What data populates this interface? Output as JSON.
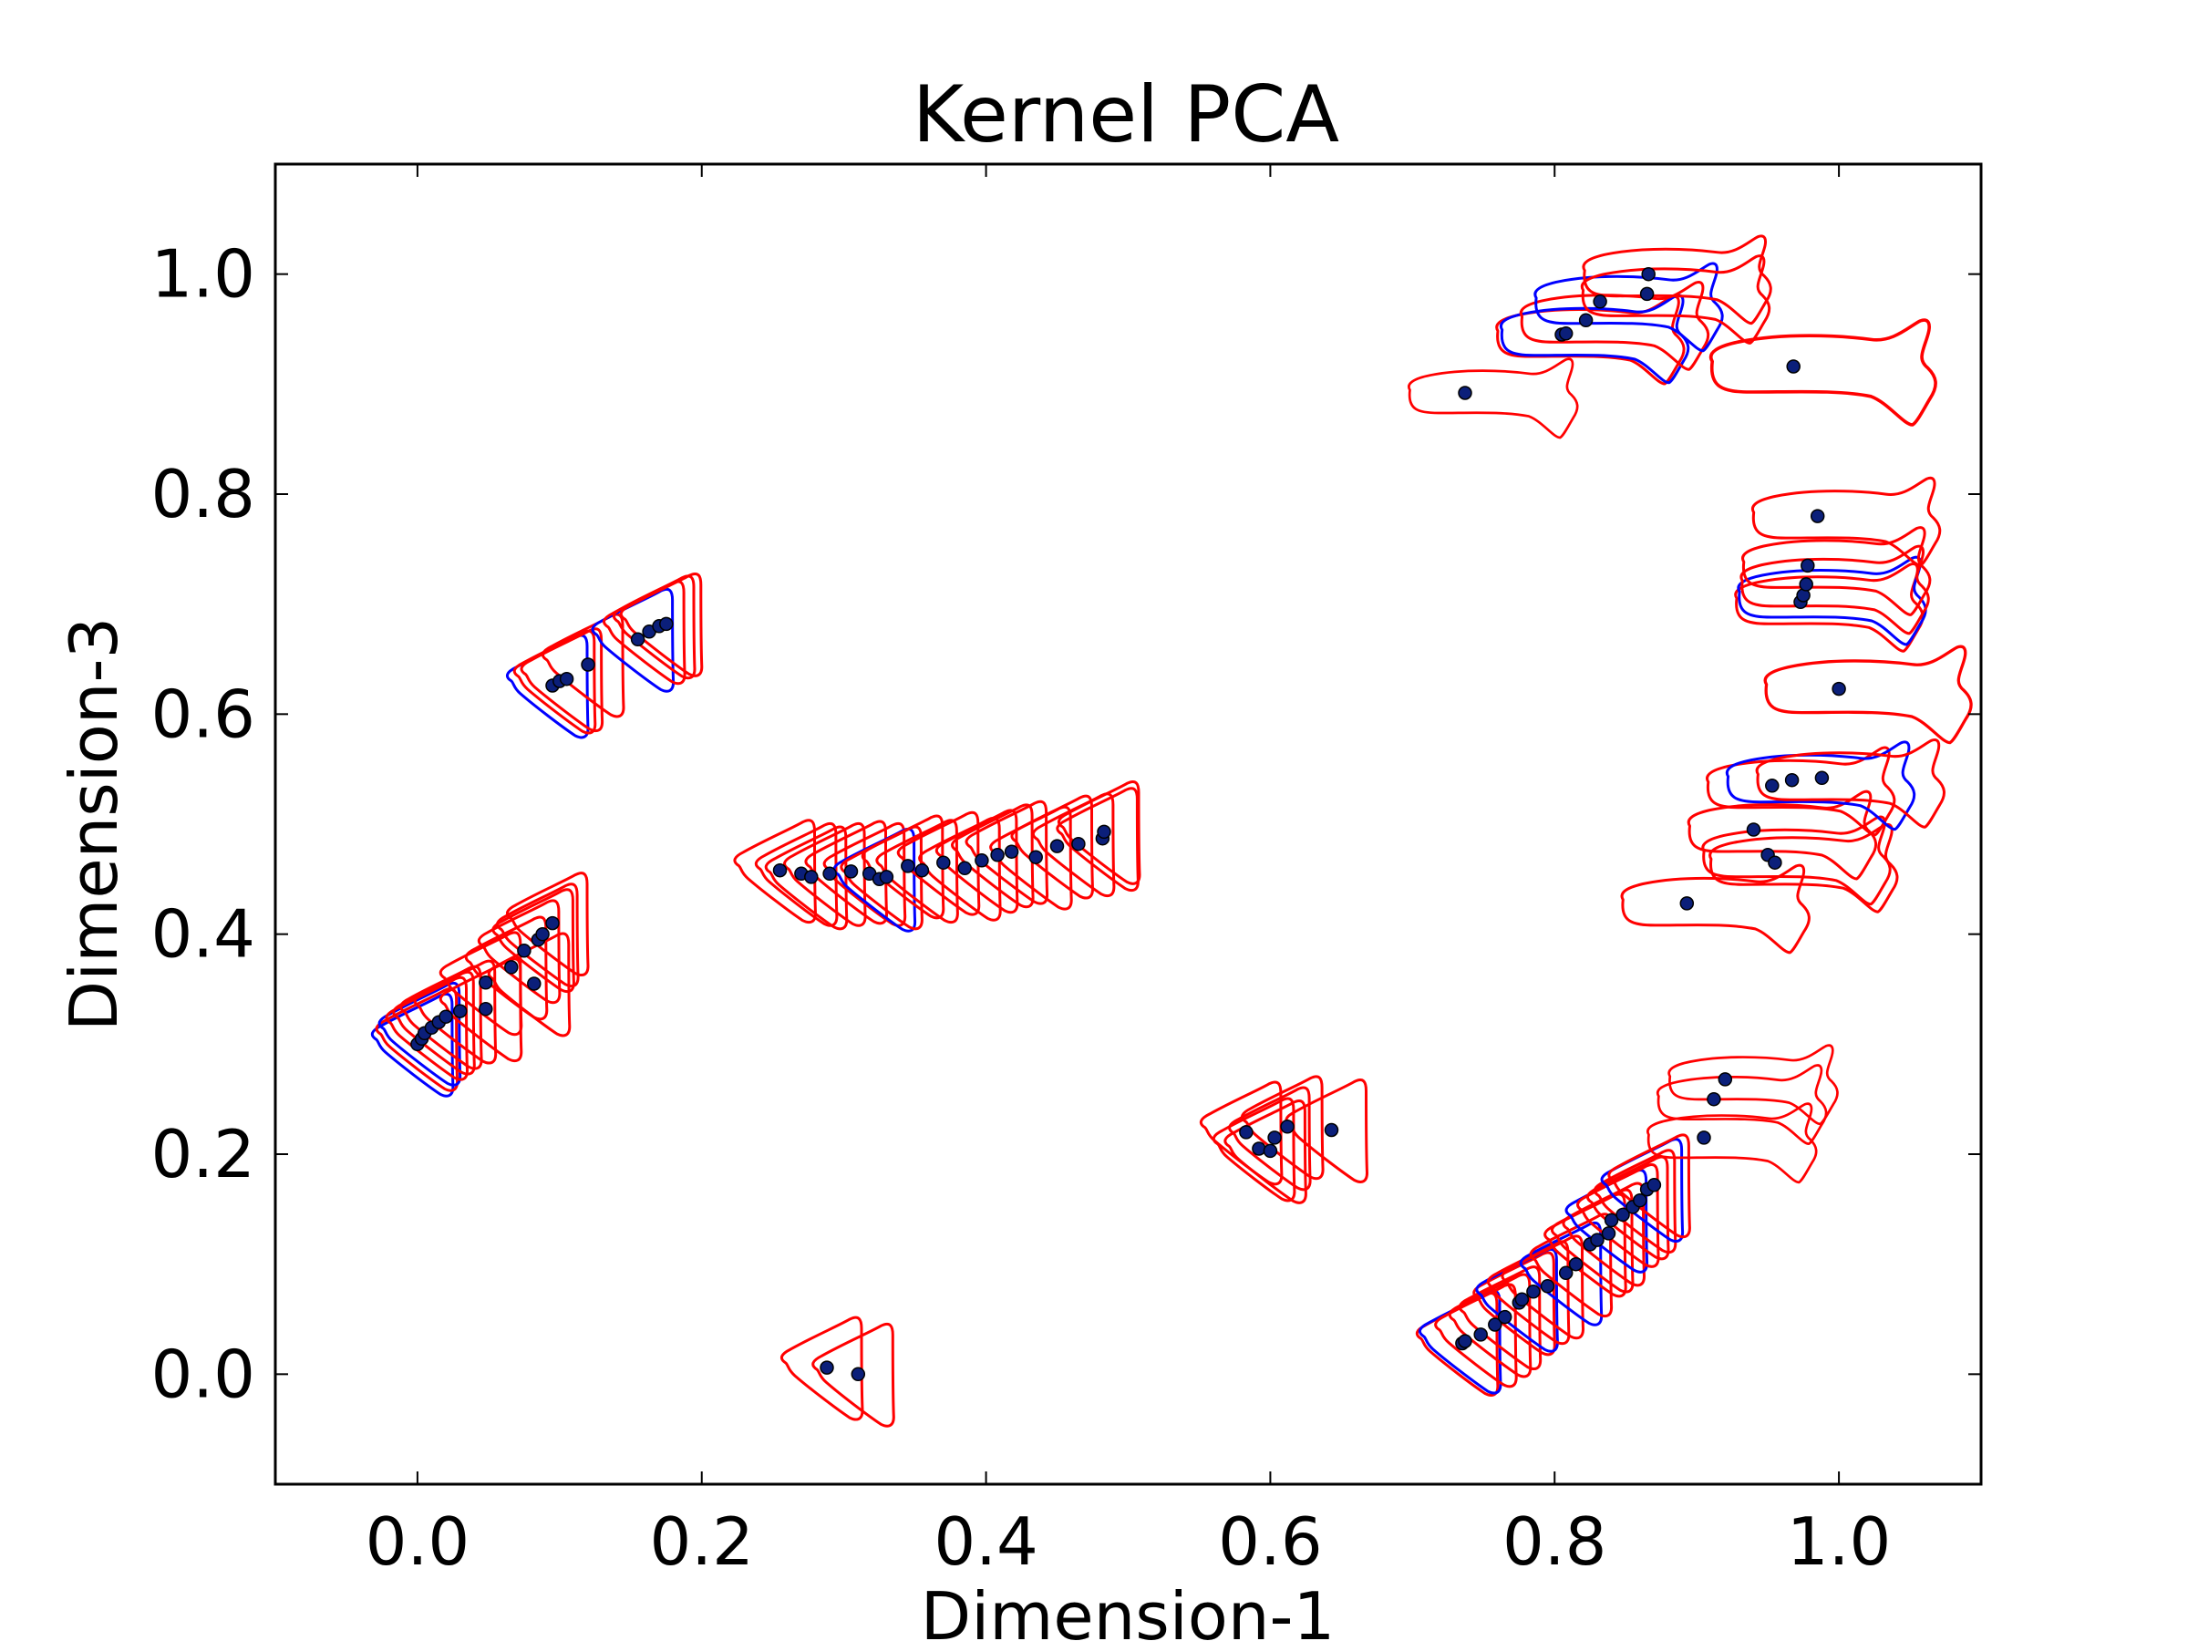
{
  "chart_data": {
    "type": "scatter",
    "title": "Kernel PCA",
    "xlabel": "Dimension-1",
    "ylabel": "Dimension-3",
    "xlim": [
      -0.1,
      1.1
    ],
    "ylim": [
      -0.1,
      1.1
    ],
    "xticks": [
      "0.0",
      "0.2",
      "0.4",
      "0.6",
      "0.8",
      "1.0"
    ],
    "yticks": [
      "0.0",
      "0.2",
      "0.4",
      "0.6",
      "0.8",
      "1.0"
    ],
    "grid": false,
    "colors": {
      "point": "#0b1f7a",
      "glyph_red": "#ff0000",
      "glyph_blue": "#0000ff"
    },
    "points": [
      {
        "x": 0.288,
        "y": 0.006,
        "shape": "tri",
        "color": "red",
        "scale": 1.0
      },
      {
        "x": 0.31,
        "y": 0.0,
        "shape": "tri",
        "color": "red",
        "scale": 1.0
      },
      {
        "x": 0.0,
        "y": 0.3,
        "shape": "tri",
        "color": "blue",
        "scale": 1.0
      },
      {
        "x": 0.003,
        "y": 0.305,
        "shape": "tri",
        "color": "red",
        "scale": 1.0
      },
      {
        "x": 0.005,
        "y": 0.31,
        "shape": "tri",
        "color": "blue",
        "scale": 1.0
      },
      {
        "x": 0.01,
        "y": 0.315,
        "shape": "tri",
        "color": "red",
        "scale": 1.0
      },
      {
        "x": 0.015,
        "y": 0.32,
        "shape": "tri",
        "color": "red",
        "scale": 1.0
      },
      {
        "x": 0.02,
        "y": 0.325,
        "shape": "tri",
        "color": "red",
        "scale": 1.0
      },
      {
        "x": 0.03,
        "y": 0.33,
        "shape": "tri",
        "color": "red",
        "scale": 1.0
      },
      {
        "x": 0.048,
        "y": 0.332,
        "shape": "tri",
        "color": "red",
        "scale": 1.0
      },
      {
        "x": 0.048,
        "y": 0.356,
        "shape": "tri",
        "color": "red",
        "scale": 1.0
      },
      {
        "x": 0.066,
        "y": 0.37,
        "shape": "tri",
        "color": "red",
        "scale": 1.0
      },
      {
        "x": 0.075,
        "y": 0.385,
        "shape": "tri",
        "color": "red",
        "scale": 1.0
      },
      {
        "x": 0.082,
        "y": 0.355,
        "shape": "tri",
        "color": "red",
        "scale": 1.0
      },
      {
        "x": 0.085,
        "y": 0.395,
        "shape": "tri",
        "color": "red",
        "scale": 1.0
      },
      {
        "x": 0.088,
        "y": 0.4,
        "shape": "tri",
        "color": "red",
        "scale": 1.0
      },
      {
        "x": 0.095,
        "y": 0.41,
        "shape": "tri",
        "color": "red",
        "scale": 1.0
      },
      {
        "x": 0.095,
        "y": 0.626,
        "shape": "tri",
        "color": "blue",
        "scale": 1.0
      },
      {
        "x": 0.1,
        "y": 0.63,
        "shape": "tri",
        "color": "red",
        "scale": 1.0
      },
      {
        "x": 0.105,
        "y": 0.632,
        "shape": "tri",
        "color": "red",
        "scale": 1.0
      },
      {
        "x": 0.12,
        "y": 0.645,
        "shape": "tri",
        "color": "red",
        "scale": 1.0
      },
      {
        "x": 0.155,
        "y": 0.668,
        "shape": "tri",
        "color": "blue",
        "scale": 1.0
      },
      {
        "x": 0.163,
        "y": 0.675,
        "shape": "tri",
        "color": "red",
        "scale": 1.0
      },
      {
        "x": 0.17,
        "y": 0.68,
        "shape": "tri",
        "color": "red",
        "scale": 1.0
      },
      {
        "x": 0.175,
        "y": 0.682,
        "shape": "tri",
        "color": "red",
        "scale": 1.0
      },
      {
        "x": 0.255,
        "y": 0.458,
        "shape": "tri",
        "color": "red",
        "scale": 1.0
      },
      {
        "x": 0.27,
        "y": 0.455,
        "shape": "tri",
        "color": "red",
        "scale": 1.0
      },
      {
        "x": 0.277,
        "y": 0.452,
        "shape": "tri",
        "color": "red",
        "scale": 1.0
      },
      {
        "x": 0.29,
        "y": 0.455,
        "shape": "tri",
        "color": "red",
        "scale": 1.0
      },
      {
        "x": 0.305,
        "y": 0.457,
        "shape": "tri",
        "color": "red",
        "scale": 1.0
      },
      {
        "x": 0.318,
        "y": 0.455,
        "shape": "tri",
        "color": "red",
        "scale": 1.0
      },
      {
        "x": 0.325,
        "y": 0.45,
        "shape": "tri",
        "color": "blue",
        "scale": 1.0
      },
      {
        "x": 0.33,
        "y": 0.452,
        "shape": "tri",
        "color": "red",
        "scale": 1.0
      },
      {
        "x": 0.345,
        "y": 0.462,
        "shape": "tri",
        "color": "red",
        "scale": 1.0
      },
      {
        "x": 0.355,
        "y": 0.458,
        "shape": "tri",
        "color": "red",
        "scale": 1.0
      },
      {
        "x": 0.37,
        "y": 0.465,
        "shape": "tri",
        "color": "red",
        "scale": 1.0
      },
      {
        "x": 0.385,
        "y": 0.46,
        "shape": "tri",
        "color": "red",
        "scale": 1.0
      },
      {
        "x": 0.397,
        "y": 0.467,
        "shape": "tri",
        "color": "red",
        "scale": 1.0
      },
      {
        "x": 0.408,
        "y": 0.472,
        "shape": "tri",
        "color": "red",
        "scale": 1.0
      },
      {
        "x": 0.418,
        "y": 0.475,
        "shape": "tri",
        "color": "red",
        "scale": 1.0
      },
      {
        "x": 0.435,
        "y": 0.47,
        "shape": "tri",
        "color": "red",
        "scale": 1.0
      },
      {
        "x": 0.45,
        "y": 0.48,
        "shape": "tri",
        "color": "red",
        "scale": 1.0
      },
      {
        "x": 0.465,
        "y": 0.482,
        "shape": "tri",
        "color": "red",
        "scale": 1.0
      },
      {
        "x": 0.482,
        "y": 0.487,
        "shape": "tri",
        "color": "red",
        "scale": 1.0
      },
      {
        "x": 0.483,
        "y": 0.493,
        "shape": "tri",
        "color": "red",
        "scale": 1.0
      },
      {
        "x": 0.583,
        "y": 0.22,
        "shape": "tri",
        "color": "red",
        "scale": 1.0
      },
      {
        "x": 0.592,
        "y": 0.205,
        "shape": "tri",
        "color": "red",
        "scale": 1.0
      },
      {
        "x": 0.6,
        "y": 0.203,
        "shape": "tri",
        "color": "red",
        "scale": 1.0
      },
      {
        "x": 0.603,
        "y": 0.215,
        "shape": "tri",
        "color": "red",
        "scale": 1.0
      },
      {
        "x": 0.612,
        "y": 0.225,
        "shape": "tri",
        "color": "red",
        "scale": 1.0
      },
      {
        "x": 0.643,
        "y": 0.222,
        "shape": "tri",
        "color": "red",
        "scale": 1.0
      },
      {
        "x": 0.735,
        "y": 0.028,
        "shape": "tri",
        "color": "red",
        "scale": 1.0
      },
      {
        "x": 0.737,
        "y": 0.03,
        "shape": "tri",
        "color": "blue",
        "scale": 1.0
      },
      {
        "x": 0.748,
        "y": 0.036,
        "shape": "tri",
        "color": "red",
        "scale": 1.0
      },
      {
        "x": 0.758,
        "y": 0.045,
        "shape": "tri",
        "color": "red",
        "scale": 1.0
      },
      {
        "x": 0.765,
        "y": 0.052,
        "shape": "tri",
        "color": "red",
        "scale": 1.0
      },
      {
        "x": 0.775,
        "y": 0.065,
        "shape": "tri",
        "color": "red",
        "scale": 1.0
      },
      {
        "x": 0.777,
        "y": 0.068,
        "shape": "tri",
        "color": "blue",
        "scale": 1.0
      },
      {
        "x": 0.785,
        "y": 0.075,
        "shape": "tri",
        "color": "red",
        "scale": 1.0
      },
      {
        "x": 0.795,
        "y": 0.08,
        "shape": "tri",
        "color": "red",
        "scale": 1.0
      },
      {
        "x": 0.808,
        "y": 0.092,
        "shape": "tri",
        "color": "blue",
        "scale": 1.0
      },
      {
        "x": 0.815,
        "y": 0.1,
        "shape": "tri",
        "color": "red",
        "scale": 1.0
      },
      {
        "x": 0.825,
        "y": 0.118,
        "shape": "tri",
        "color": "red",
        "scale": 1.0
      },
      {
        "x": 0.83,
        "y": 0.122,
        "shape": "tri",
        "color": "red",
        "scale": 1.0
      },
      {
        "x": 0.838,
        "y": 0.128,
        "shape": "tri",
        "color": "red",
        "scale": 1.0
      },
      {
        "x": 0.84,
        "y": 0.14,
        "shape": "tri",
        "color": "blue",
        "scale": 1.0
      },
      {
        "x": 0.848,
        "y": 0.145,
        "shape": "tri",
        "color": "red",
        "scale": 1.0
      },
      {
        "x": 0.855,
        "y": 0.152,
        "shape": "tri",
        "color": "red",
        "scale": 1.0
      },
      {
        "x": 0.86,
        "y": 0.158,
        "shape": "tri",
        "color": "red",
        "scale": 1.0
      },
      {
        "x": 0.865,
        "y": 0.168,
        "shape": "tri",
        "color": "blue",
        "scale": 1.0
      },
      {
        "x": 0.87,
        "y": 0.172,
        "shape": "tri",
        "color": "red",
        "scale": 1.0
      },
      {
        "x": 0.905,
        "y": 0.215,
        "shape": "fish",
        "color": "red",
        "scale": 0.9
      },
      {
        "x": 0.912,
        "y": 0.25,
        "shape": "fish",
        "color": "red",
        "scale": 0.9
      },
      {
        "x": 0.92,
        "y": 0.268,
        "shape": "fish",
        "color": "red",
        "scale": 0.9
      },
      {
        "x": 0.737,
        "y": 0.892,
        "shape": "fish",
        "color": "red",
        "scale": 0.9
      },
      {
        "x": 0.805,
        "y": 0.945,
        "shape": "fish",
        "color": "red",
        "scale": 1.0
      },
      {
        "x": 0.808,
        "y": 0.946,
        "shape": "fish",
        "color": "blue",
        "scale": 1.0
      },
      {
        "x": 0.822,
        "y": 0.958,
        "shape": "fish",
        "color": "red",
        "scale": 1.0
      },
      {
        "x": 0.832,
        "y": 0.975,
        "shape": "fish",
        "color": "blue",
        "scale": 1.0
      },
      {
        "x": 0.865,
        "y": 0.982,
        "shape": "fish",
        "color": "red",
        "scale": 1.0
      },
      {
        "x": 0.866,
        "y": 1.0,
        "shape": "fish",
        "color": "red",
        "scale": 1.0
      },
      {
        "x": 0.968,
        "y": 0.916,
        "shape": "fish",
        "color": "red",
        "scale": 1.2
      },
      {
        "x": 0.893,
        "y": 0.428,
        "shape": "fish",
        "color": "red",
        "scale": 1.0
      },
      {
        "x": 0.94,
        "y": 0.495,
        "shape": "fish",
        "color": "red",
        "scale": 1.0
      },
      {
        "x": 0.95,
        "y": 0.472,
        "shape": "fish",
        "color": "red",
        "scale": 1.0
      },
      {
        "x": 0.955,
        "y": 0.465,
        "shape": "fish",
        "color": "red",
        "scale": 1.0
      },
      {
        "x": 0.953,
        "y": 0.535,
        "shape": "fish",
        "color": "red",
        "scale": 1.0
      },
      {
        "x": 0.967,
        "y": 0.54,
        "shape": "fish",
        "color": "blue",
        "scale": 1.0
      },
      {
        "x": 0.988,
        "y": 0.542,
        "shape": "fish",
        "color": "red",
        "scale": 1.0
      },
      {
        "x": 1.0,
        "y": 0.623,
        "shape": "fish",
        "color": "red",
        "scale": 1.1
      },
      {
        "x": 0.973,
        "y": 0.702,
        "shape": "fish",
        "color": "red",
        "scale": 1.0
      },
      {
        "x": 0.975,
        "y": 0.708,
        "shape": "fish",
        "color": "blue",
        "scale": 1.0
      },
      {
        "x": 0.977,
        "y": 0.718,
        "shape": "fish",
        "color": "red",
        "scale": 1.0
      },
      {
        "x": 0.978,
        "y": 0.735,
        "shape": "fish",
        "color": "red",
        "scale": 1.0
      },
      {
        "x": 0.985,
        "y": 0.78,
        "shape": "fish",
        "color": "red",
        "scale": 1.0
      }
    ]
  }
}
